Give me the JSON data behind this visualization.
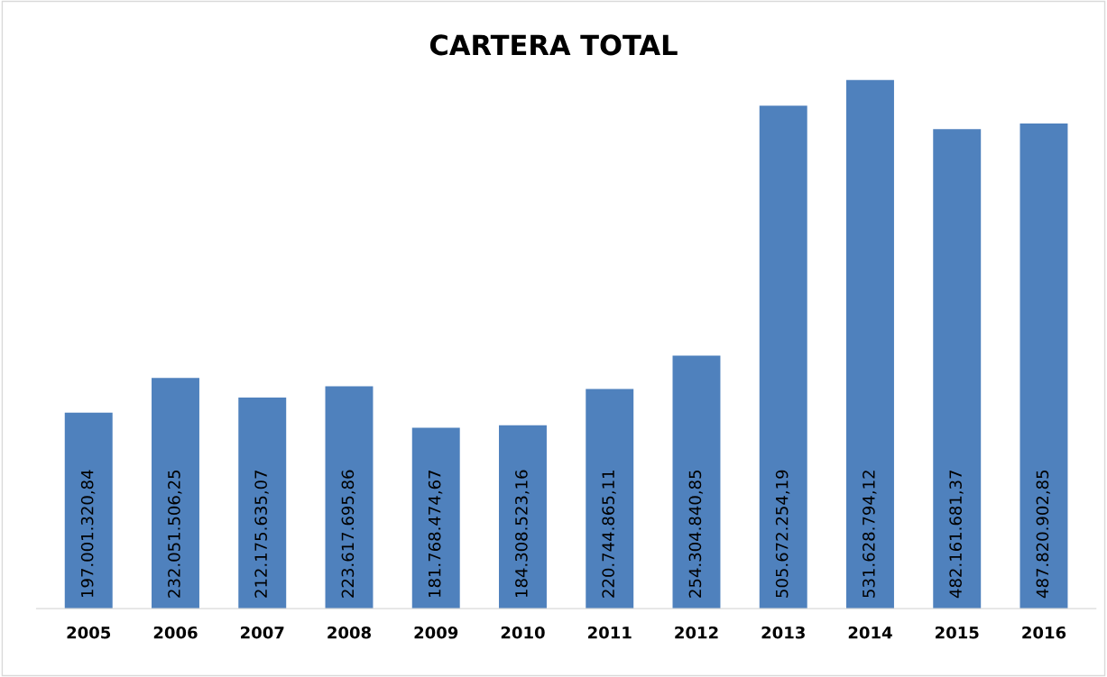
{
  "chart_data": {
    "type": "bar",
    "title": "CARTERA TOTAL",
    "categories": [
      "2005",
      "2006",
      "2007",
      "2008",
      "2009",
      "2010",
      "2011",
      "2012",
      "2013",
      "2014",
      "2015",
      "2016"
    ],
    "values": [
      197001320.84,
      232051506.25,
      212175635.07,
      223617695.86,
      181768474.67,
      184308523.16,
      220744865.11,
      254304840.85,
      505672254.19,
      531628794.12,
      482161681.37,
      487820902.85
    ],
    "value_labels": [
      "197.001.320,84",
      "232.051.506,25",
      "212.175.635,07",
      "223.617.695,86",
      "181.768.474,67",
      "184.308.523,16",
      "220.744.865,11",
      "254.304.840,85",
      "505.672.254,19",
      "531.628.794,12",
      "482.161.681,37",
      "487.820.902,85"
    ],
    "color": "#4f81bd",
    "grid": false,
    "legend": false,
    "tick_labels": "x"
  }
}
